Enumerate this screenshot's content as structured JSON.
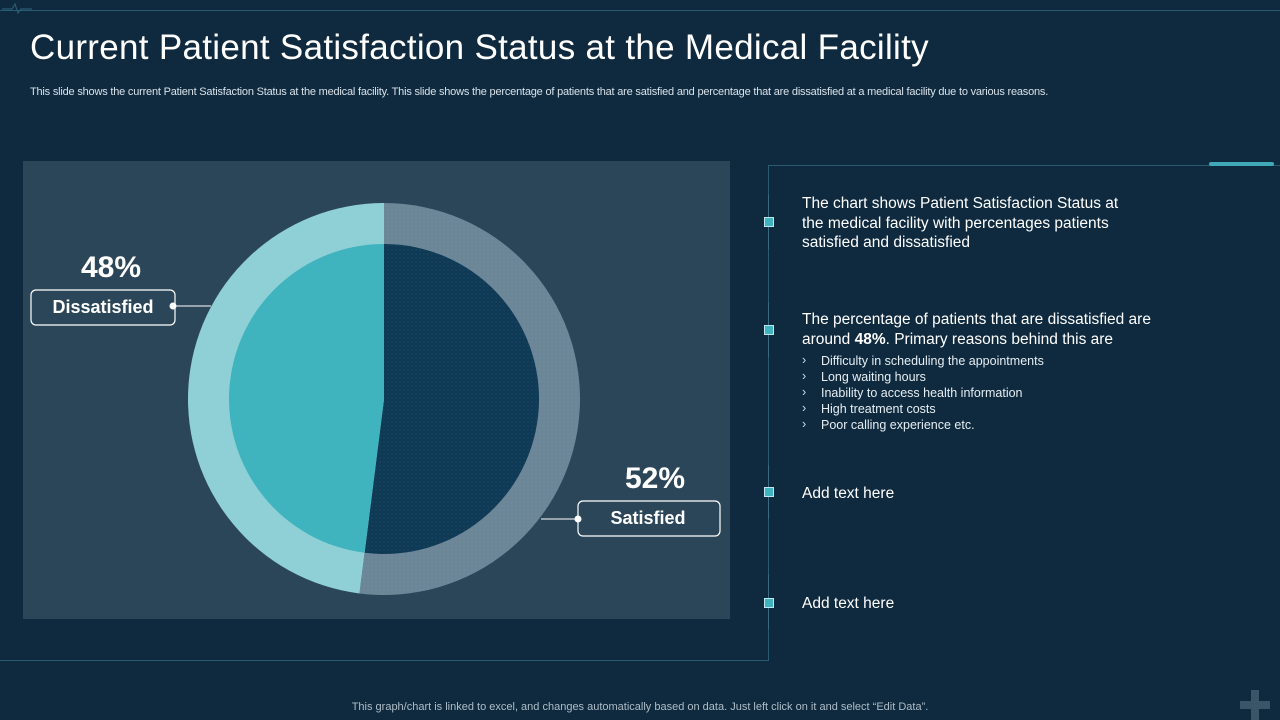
{
  "title": "Current Patient Satisfaction Status at the Medical Facility",
  "subtitle": "This slide shows the current Patient Satisfaction Status at the medical facility. This slide shows the percentage of patients that are satisfied and percentage that are dissatisfied at a medical facility due to various reasons.",
  "chart_data": {
    "type": "pie",
    "categories": [
      "Dissatisfied",
      "Satisfied"
    ],
    "values": [
      48,
      52
    ],
    "value_labels": [
      "48%",
      "52%"
    ],
    "colors": [
      "#3fb3be",
      "#0f3a55"
    ],
    "ring_colors": [
      "#8fd0d6",
      "#6b8697"
    ]
  },
  "points": [
    {
      "text": "The chart shows Patient Satisfaction Status at the medical facility with percentages patients satisfied and dissatisfied"
    },
    {
      "text_before": "The percentage of patients that are dissatisfied are around ",
      "text_bold": "48%",
      "text_after": ". Primary reasons behind this are",
      "bullets": [
        "Difficulty in scheduling the appointments",
        "Long waiting hours",
        "Inability to access health information",
        "High treatment costs",
        "Poor calling experience etc."
      ]
    },
    {
      "text": "Add text here"
    },
    {
      "text": "Add text here"
    }
  ],
  "footer": "This graph/chart is linked to excel,  and changes automatically based on data. Just left click on it and select “Edit Data”.",
  "colors": {
    "background": "#0f2a3e",
    "panel": "#2c4659",
    "accent": "#3fa9b8"
  },
  "icons": {
    "corner": "heartbeat-icon",
    "watermark": "medical-cross-icon"
  }
}
